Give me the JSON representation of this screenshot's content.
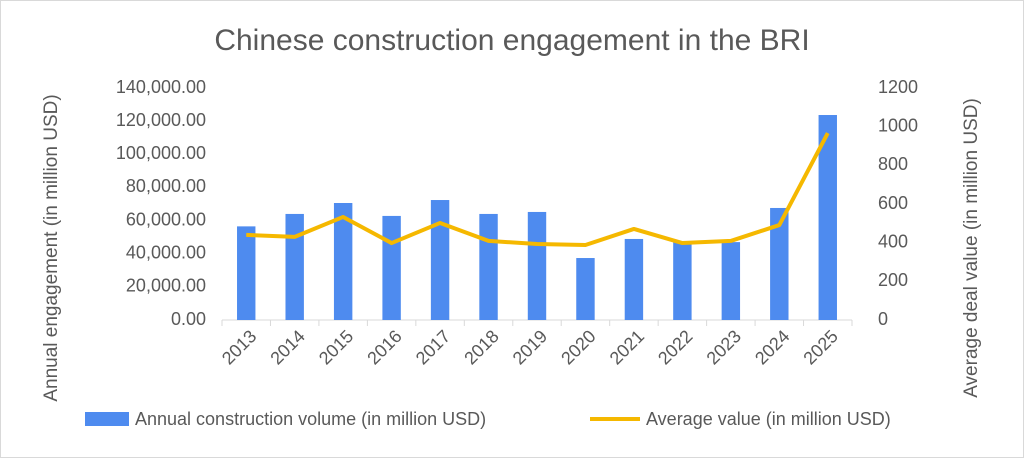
{
  "chart_data": {
    "type": "bar+line",
    "title": "Chinese construction engagement in the BRI",
    "y_label": "Annual engagement (in million USD)",
    "y2_label": "Average deal value (in million USD)",
    "categories": [
      "2013",
      "2014",
      "2015",
      "2016",
      "2017",
      "2018",
      "2019",
      "2020",
      "2021",
      "2022",
      "2023",
      "2024",
      "2025"
    ],
    "series": [
      {
        "name": "Annual construction volume (in million USD)",
        "type": "bar",
        "color": "#4e8bef",
        "values": [
          56500,
          64000,
          70600,
          62800,
          72400,
          64000,
          65200,
          37400,
          48900,
          47000,
          47000,
          67600,
          123700
        ]
      },
      {
        "name": "Average value (in million USD)",
        "type": "line",
        "color": "#f5b800",
        "axis": "y2",
        "values": [
          440,
          430,
          533,
          398,
          502,
          409,
          393,
          388,
          471,
          398,
          409,
          491,
          967
        ]
      }
    ],
    "ylim": [
      0,
      140000
    ],
    "yticks": [
      {
        "value": 0,
        "label": "0.00"
      },
      {
        "value": 20000,
        "label": "20,000.00"
      },
      {
        "value": 40000,
        "label": "40,000.00"
      },
      {
        "value": 60000,
        "label": "60,000.00"
      },
      {
        "value": 80000,
        "label": "80,000.00"
      },
      {
        "value": 100000,
        "label": "100,000.00"
      },
      {
        "value": 120000,
        "label": "120,000.00"
      },
      {
        "value": 140000,
        "label": "140,000.00"
      }
    ],
    "y2lim": [
      0,
      1200
    ],
    "y2ticks": [
      0,
      200,
      400,
      600,
      800,
      1000,
      1200
    ],
    "grid": false,
    "legend": "bottom"
  }
}
